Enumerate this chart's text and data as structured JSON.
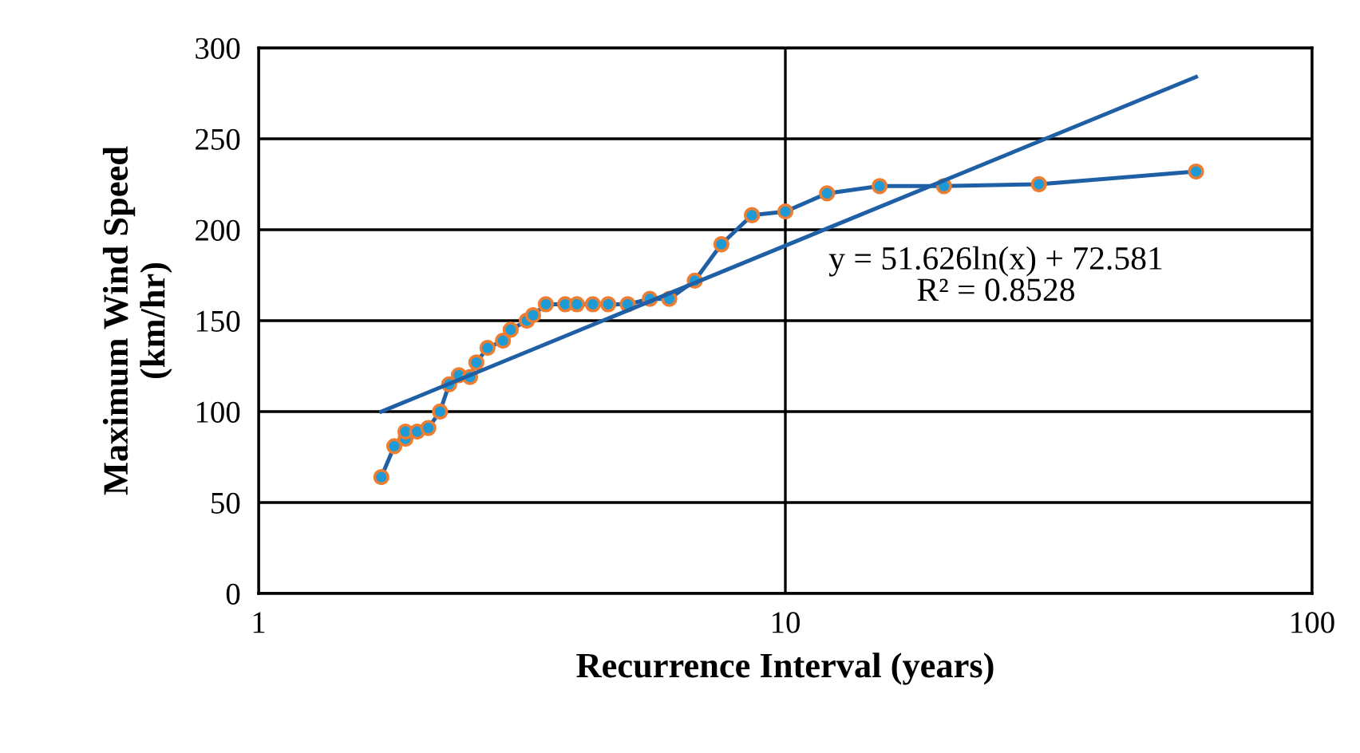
{
  "chart_data": {
    "type": "line",
    "xlabel": "Recurrence Interval (years)",
    "ylabel": "Maximum Wind Speed\n(km/hr)",
    "log": "x",
    "xlim": [
      1,
      100
    ],
    "xticks": [
      1,
      10,
      100
    ],
    "ylim": [
      0,
      300
    ],
    "yticks": [
      0,
      50,
      100,
      150,
      200,
      250,
      300
    ],
    "grid": true,
    "annotations": [
      "y = 51.626ln(x) + 72.581\nR² = 0.8528"
    ],
    "series": [
      {
        "color": "#1f5fa6",
        "marker": "circle",
        "x": [
          1.71,
          1.81,
          1.9,
          1.9,
          2.0,
          2.1,
          2.21,
          2.3,
          2.4,
          2.52,
          2.59,
          2.72,
          2.91,
          3.01,
          3.23,
          3.32,
          3.51,
          3.82,
          4.02,
          4.31,
          4.61,
          5.02,
          5.53,
          6.02,
          6.73,
          7.56,
          8.64,
          10.0,
          12.0,
          15.1,
          20.0,
          30.3,
          60.2
        ],
        "values": [
          64,
          81,
          85,
          89,
          89,
          91,
          100,
          115,
          120,
          119,
          127,
          135,
          139,
          145,
          150,
          153,
          159,
          159,
          159,
          159,
          159,
          159,
          162,
          162,
          172,
          192,
          208,
          210,
          220,
          224,
          224,
          225,
          232
        ]
      },
      {
        "color": "#1f5fa6",
        "marker": "none",
        "x": [
          1.71,
          60.2
        ],
        "values": [
          100,
          284
        ]
      }
    ]
  }
}
